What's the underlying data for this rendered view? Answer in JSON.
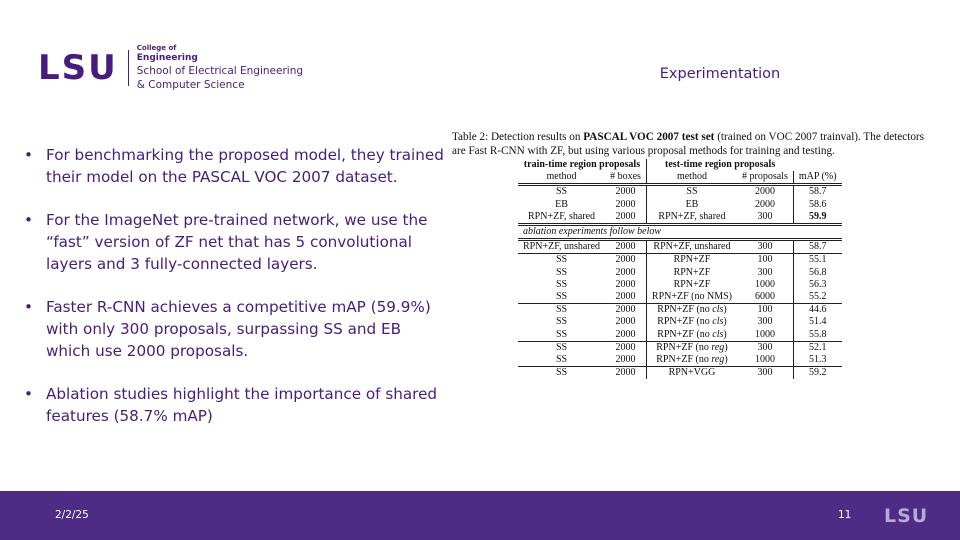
{
  "header": {
    "logo_mark": "LSU",
    "college_of": "College of",
    "engineering": "Engineering",
    "school_line1": "School of Electrical Engineering",
    "school_line2": "& Computer Science",
    "title": "Experimentation"
  },
  "bullets": [
    "For benchmarking the proposed model, they trained their model on the PASCAL VOC 2007 dataset.",
    "For the ImageNet pre-trained network, we use the “fast” version of ZF net that has 5 convolutional layers and 3 fully-connected layers.",
    "Faster R-CNN achieves a competitive mAP (59.9%) with only 300 proposals, surpassing SS and EB which use 2000 proposals.",
    "Ablation studies  highlight the importance of shared features (58.7% mAP)"
  ],
  "bullet_glyph": "•",
  "table": {
    "caption_pre": "Table 2: Detection results on ",
    "caption_bold": "PASCAL VOC 2007 test set",
    "caption_post": " (trained on VOC 2007 trainval). The detectors are Fast R-CNN with ZF, but using various proposal methods for training and testing.",
    "group_train": "train-time region proposals",
    "group_test": "test-time region proposals",
    "col_method": "method",
    "col_boxes": "# boxes",
    "col_method2": "method",
    "col_proposals": "# proposals",
    "col_map": "mAP (%)",
    "ablation_note": "ablation experiments follow below",
    "rows": [
      {
        "train": "SS",
        "boxes": "2000",
        "test": "SS",
        "test_suffix": "",
        "test_close": "",
        "props": "2000",
        "map": "58.7"
      },
      {
        "train": "EB",
        "boxes": "2000",
        "test": "EB",
        "test_suffix": "",
        "test_close": "",
        "props": "2000",
        "map": "58.6"
      },
      {
        "train": "RPN+ZF, shared",
        "boxes": "2000",
        "test": "RPN+ZF, shared",
        "test_suffix": "",
        "test_close": "",
        "props": "300",
        "map": "59.9"
      },
      {
        "train": "RPN+ZF, unshared",
        "boxes": "2000",
        "test": "RPN+ZF, unshared",
        "test_suffix": "",
        "test_close": "",
        "props": "300",
        "map": "58.7"
      },
      {
        "train": "SS",
        "boxes": "2000",
        "test": "RPN+ZF",
        "test_suffix": "",
        "test_close": "",
        "props": "100",
        "map": "55.1"
      },
      {
        "train": "SS",
        "boxes": "2000",
        "test": "RPN+ZF",
        "test_suffix": "",
        "test_close": "",
        "props": "300",
        "map": "56.8"
      },
      {
        "train": "SS",
        "boxes": "2000",
        "test": "RPN+ZF",
        "test_suffix": "",
        "test_close": "",
        "props": "1000",
        "map": "56.3"
      },
      {
        "train": "SS",
        "boxes": "2000",
        "test": "RPN+ZF (no NMS)",
        "test_suffix": "",
        "test_close": "",
        "props": "6000",
        "map": "55.2"
      },
      {
        "train": "SS",
        "boxes": "2000",
        "test": "RPN+ZF (no ",
        "test_suffix": "cls",
        "test_close": ")",
        "props": "100",
        "map": "44.6"
      },
      {
        "train": "SS",
        "boxes": "2000",
        "test": "RPN+ZF (no ",
        "test_suffix": "cls",
        "test_close": ")",
        "props": "300",
        "map": "51.4"
      },
      {
        "train": "SS",
        "boxes": "2000",
        "test": "RPN+ZF (no ",
        "test_suffix": "cls",
        "test_close": ")",
        "props": "1000",
        "map": "55.8"
      },
      {
        "train": "SS",
        "boxes": "2000",
        "test": "RPN+ZF (no ",
        "test_suffix": "reg",
        "test_close": ")",
        "props": "300",
        "map": "52.1"
      },
      {
        "train": "SS",
        "boxes": "2000",
        "test": "RPN+ZF (no ",
        "test_suffix": "reg",
        "test_close": ")",
        "props": "1000",
        "map": "51.3"
      },
      {
        "train": "SS",
        "boxes": "2000",
        "test": "RPN+VGG",
        "test_suffix": "",
        "test_close": "",
        "props": "300",
        "map": "59.2"
      }
    ]
  },
  "footer": {
    "date": "2/2/25",
    "page": "11",
    "logo": "LSU"
  },
  "colors": {
    "purple": "#461d7c",
    "footer": "#4e2c85"
  }
}
